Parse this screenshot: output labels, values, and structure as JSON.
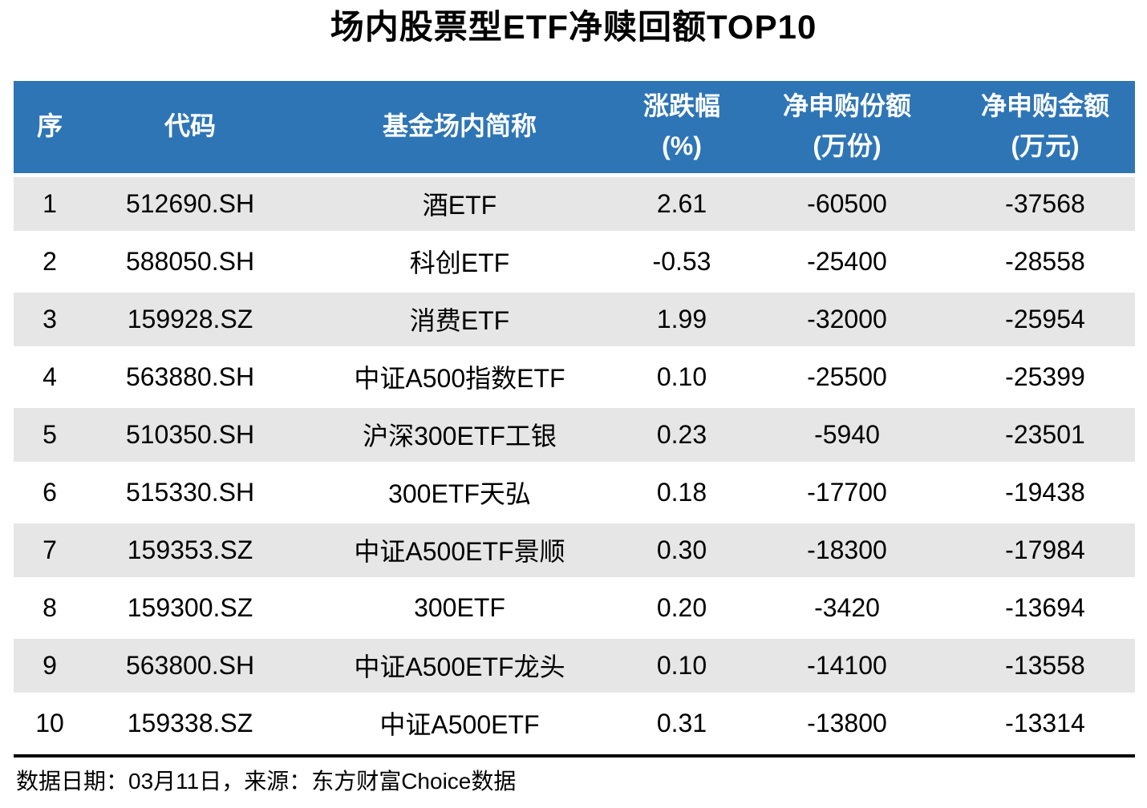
{
  "title": "场内股票型ETF净赎回额TOP10",
  "colors": {
    "header_bg": "#2E75B6",
    "header_text": "#FFFFFF",
    "row_alt_bg": "#E7E6E6",
    "row_bg": "#FFFFFF",
    "body_text": "#000000",
    "rule": "#000000"
  },
  "table": {
    "headers": [
      [
        "序"
      ],
      [
        "代码"
      ],
      [
        "基金场内简称"
      ],
      [
        "涨跌幅",
        "(%)"
      ],
      [
        "净申购份额",
        "(万份)"
      ],
      [
        "净申购金额",
        "(万元)"
      ]
    ],
    "rows": [
      {
        "cells": [
          "1",
          "512690.SH",
          "酒ETF",
          "2.61",
          "-60500",
          "-37568"
        ]
      },
      {
        "cells": [
          "2",
          "588050.SH",
          "科创ETF",
          "-0.53",
          "-25400",
          "-28558"
        ]
      },
      {
        "cells": [
          "3",
          "159928.SZ",
          "消费ETF",
          "1.99",
          "-32000",
          "-25954"
        ]
      },
      {
        "cells": [
          "4",
          "563880.SH",
          "中证A500指数ETF",
          "0.10",
          "-25500",
          "-25399"
        ]
      },
      {
        "cells": [
          "5",
          "510350.SH",
          "沪深300ETF工银",
          "0.23",
          "-5940",
          "-23501"
        ]
      },
      {
        "cells": [
          "6",
          "515330.SH",
          "300ETF天弘",
          "0.18",
          "-17700",
          "-19438"
        ]
      },
      {
        "cells": [
          "7",
          "159353.SZ",
          "中证A500ETF景顺",
          "0.30",
          "-18300",
          "-17984"
        ]
      },
      {
        "cells": [
          "8",
          "159300.SZ",
          "300ETF",
          "0.20",
          "-3420",
          "-13694"
        ]
      },
      {
        "cells": [
          "9",
          "563800.SH",
          "中证A500ETF龙头",
          "0.10",
          "-14100",
          "-13558"
        ]
      },
      {
        "cells": [
          "10",
          "159338.SZ",
          "中证A500ETF",
          "0.31",
          "-13800",
          "-13314"
        ]
      }
    ]
  },
  "footer": {
    "text": "数据日期：03月11日，来源：东方财富Choice数据"
  },
  "chart_data": {
    "type": "table",
    "title": "场内股票型ETF净赎回额TOP10",
    "columns": [
      "序",
      "代码",
      "基金场内简称",
      "涨跌幅(%)",
      "净申购份额(万份)",
      "净申购金额(万元)"
    ],
    "rows": [
      [
        1,
        "512690.SH",
        "酒ETF",
        2.61,
        -60500,
        -37568
      ],
      [
        2,
        "588050.SH",
        "科创ETF",
        -0.53,
        -25400,
        -28558
      ],
      [
        3,
        "159928.SZ",
        "消费ETF",
        1.99,
        -32000,
        -25954
      ],
      [
        4,
        "563880.SH",
        "中证A500指数ETF",
        0.1,
        -25500,
        -25399
      ],
      [
        5,
        "510350.SH",
        "沪深300ETF工银",
        0.23,
        -5940,
        -23501
      ],
      [
        6,
        "515330.SH",
        "300ETF天弘",
        0.18,
        -17700,
        -19438
      ],
      [
        7,
        "159353.SZ",
        "中证A500ETF景顺",
        0.3,
        -18300,
        -17984
      ],
      [
        8,
        "159300.SZ",
        "300ETF",
        0.2,
        -3420,
        -13694
      ],
      [
        9,
        "563800.SH",
        "中证A500ETF龙头",
        0.1,
        -14100,
        -13558
      ],
      [
        10,
        "159338.SZ",
        "中证A500ETF",
        0.31,
        -13800,
        -13314
      ]
    ],
    "source_note": "数据日期：03月11日，来源：东方财富Choice数据"
  }
}
